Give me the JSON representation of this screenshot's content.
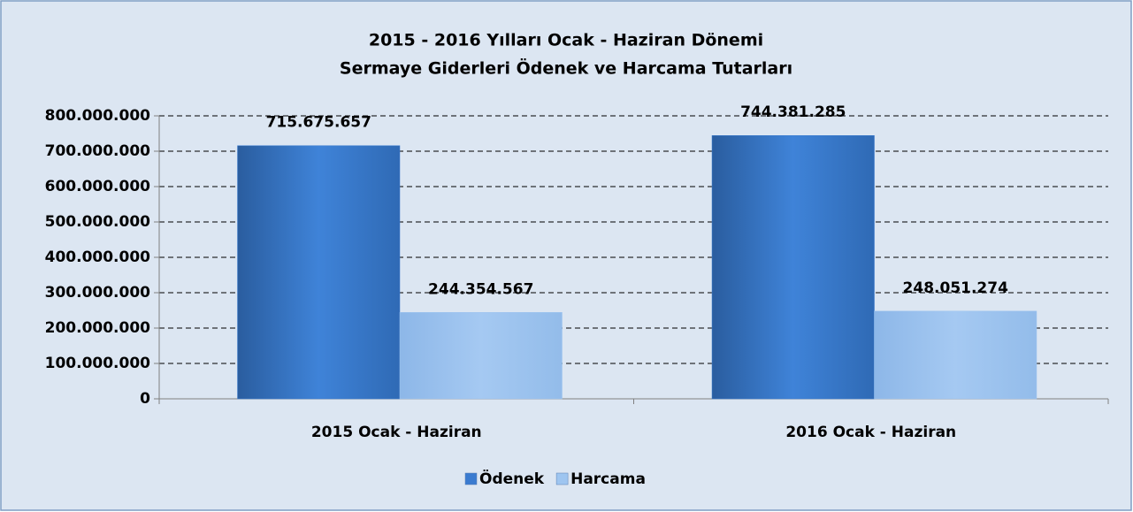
{
  "chart_data": {
    "type": "bar",
    "title": [
      "2015 - 2016 Yılları Ocak - Haziran Dönemi",
      "Sermaye Giderleri Ödenek ve Harcama Tutarları"
    ],
    "categories": [
      "2015 Ocak - Haziran",
      "2016 Ocak - Haziran"
    ],
    "series": [
      {
        "name": "Ödenek",
        "color": "#3a7bd0",
        "values": [
          715675657,
          744381285
        ],
        "value_labels": [
          "715.675.657",
          "744.381.285"
        ]
      },
      {
        "name": "Harcama",
        "color": "#9ec5f0",
        "values": [
          244354567,
          248051274
        ],
        "value_labels": [
          "244.354.567",
          "248.051.274"
        ]
      }
    ],
    "ylim": [
      0,
      800000000
    ],
    "yticks": [
      0,
      {
        "value": 100000000,
        "label": "100.000.000"
      },
      {
        "value": 200000000,
        "label": "200.000.000"
      },
      {
        "value": 300000000,
        "label": "300.000.000"
      },
      {
        "value": 400000000,
        "label": "400.000.000"
      },
      {
        "value": 500000000,
        "label": "500.000.000"
      },
      {
        "value": 600000000,
        "label": "600.000.000"
      },
      {
        "value": 700000000,
        "label": "700.000.000"
      },
      {
        "value": 800000000,
        "label": "800.000.000"
      }
    ],
    "grid": true,
    "legend": "bottom"
  }
}
